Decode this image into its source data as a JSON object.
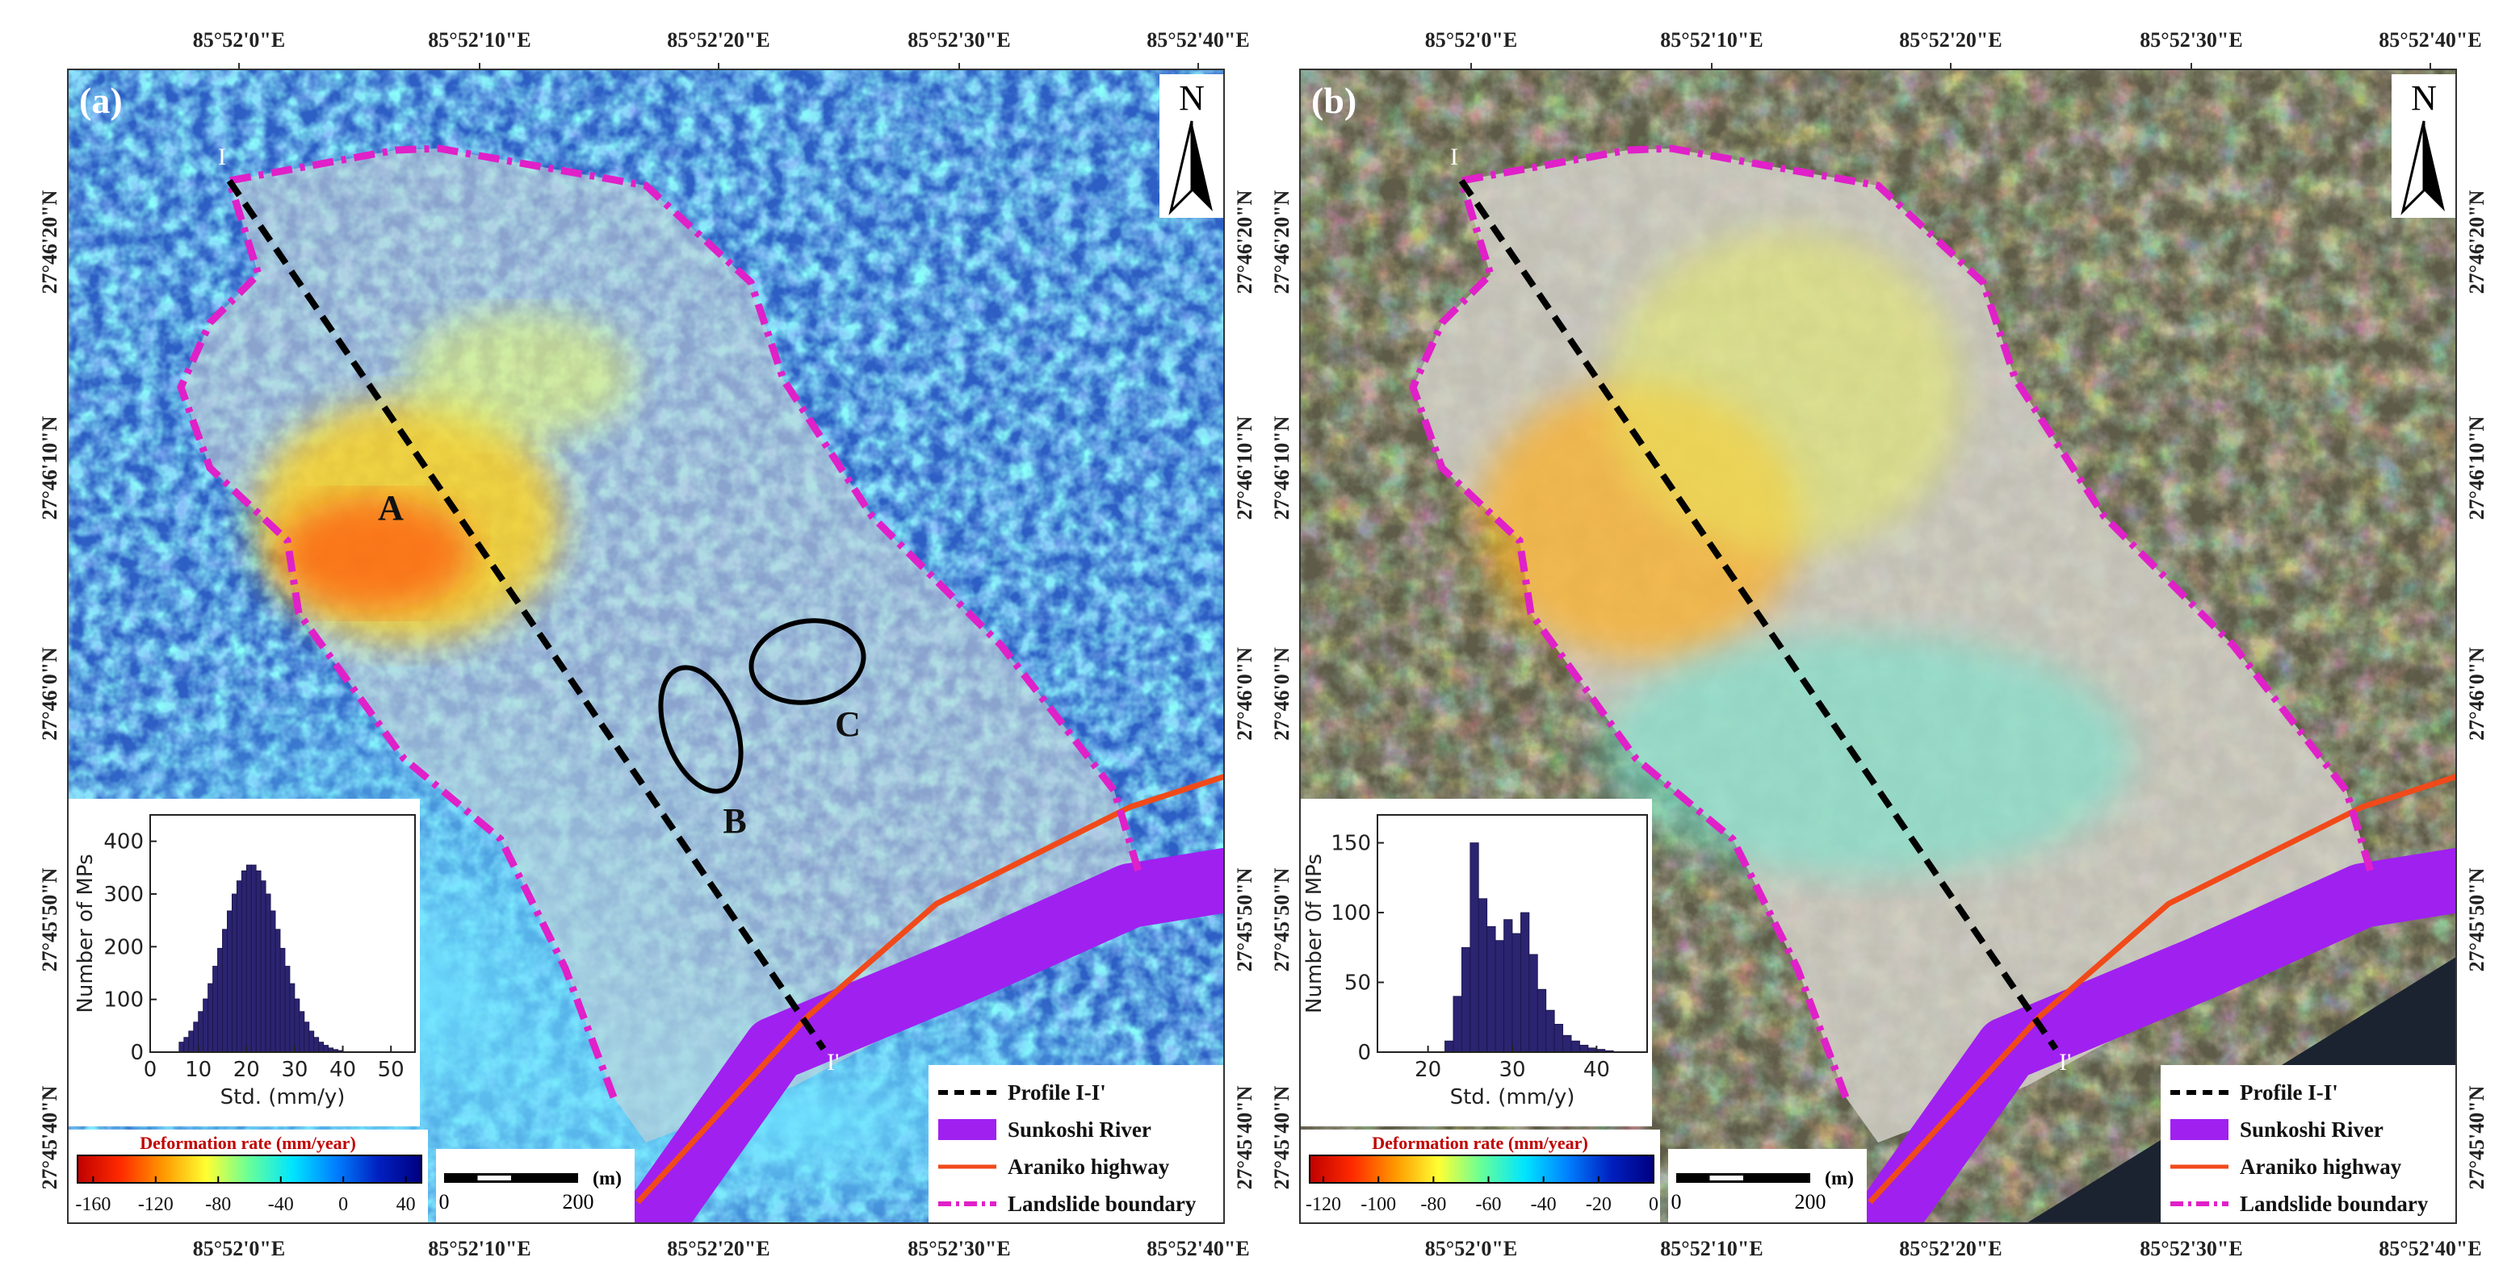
{
  "panels": [
    {
      "label": "(a)",
      "north": "N",
      "lon_labels": [
        "85°52'0\"E",
        "85°52'10\"E",
        "85°52'20\"E",
        "85°52'30\"E",
        "85°52'40\"E"
      ],
      "lat_labels": [
        "27°46'20\"N",
        "27°46'10\"N",
        "27°46'0\"N",
        "27°45'50\"N",
        "27°45'40\"N"
      ],
      "profile": {
        "start": "I",
        "end": "I'"
      },
      "annotations": [
        "A",
        "B",
        "C"
      ],
      "histogram": {
        "type": "histogram",
        "xlabel": "Std. (mm/y)",
        "ylabel": "Number of MPs",
        "color": "#2b2470",
        "bins": [
          6,
          7,
          8,
          9,
          10,
          11,
          12,
          13,
          14,
          15,
          16,
          17,
          18,
          19,
          20,
          21,
          22,
          23,
          24,
          25,
          26,
          27,
          28,
          29,
          30,
          31,
          32,
          33,
          34,
          35,
          36,
          37,
          38,
          39,
          40
        ],
        "values": [
          19,
          28,
          40,
          57,
          77,
          101,
          130,
          163,
          197,
          233,
          268,
          300,
          325,
          344,
          355,
          355,
          344,
          325,
          300,
          268,
          233,
          197,
          163,
          130,
          101,
          77,
          57,
          40,
          28,
          19,
          13,
          8,
          5,
          3
        ],
        "xlim": [
          0,
          55
        ],
        "ylim": [
          0,
          450
        ],
        "xticks": [
          0,
          10,
          20,
          30,
          40,
          50
        ],
        "yticks": [
          0,
          100,
          200,
          300,
          400
        ]
      },
      "colorbar": {
        "title": "Deformation rate (mm/year)",
        "clim": [
          -170,
          50
        ],
        "ticks": [
          -160,
          -120,
          -80,
          -40,
          0,
          40
        ],
        "colors": [
          "#c00000",
          "#ff2a00",
          "#ff9900",
          "#ffff33",
          "#66ff99",
          "#00e5ff",
          "#0080ff",
          "#0020c0",
          "#000080"
        ]
      },
      "scalebar": {
        "unit": "(m)",
        "ticks": [
          0,
          200
        ]
      },
      "legend": [
        {
          "label": "Profile I-I'",
          "color": "#000000",
          "style": "dashed"
        },
        {
          "label": "Sunkoshi River",
          "color": "#a020f0",
          "style": "band"
        },
        {
          "label": "Araniko highway",
          "color": "#f04a1a",
          "style": "line"
        },
        {
          "label": "Landslide boundary",
          "color": "#e020c8",
          "style": "dashdot"
        }
      ]
    },
    {
      "label": "(b)",
      "north": "N",
      "lon_labels": [
        "85°52'0\"E",
        "85°52'10\"E",
        "85°52'20\"E",
        "85°52'30\"E",
        "85°52'40\"E"
      ],
      "lat_labels": [
        "27°46'20\"N",
        "27°46'10\"N",
        "27°46'0\"N",
        "27°45'50\"N",
        "27°45'40\"N"
      ],
      "profile": {
        "start": "I",
        "end": "I'"
      },
      "annotations": [],
      "histogram": {
        "type": "histogram",
        "xlabel": "Std. (mm/y)",
        "ylabel": "Number 0f MPs",
        "color": "#2b2470",
        "bins": [
          22,
          23,
          24,
          25,
          26,
          27,
          28,
          29,
          30,
          31,
          32,
          33,
          34,
          35,
          36,
          37,
          38,
          39,
          40,
          41,
          42
        ],
        "values": [
          8,
          40,
          75,
          150,
          110,
          90,
          80,
          95,
          85,
          100,
          70,
          45,
          30,
          20,
          12,
          8,
          5,
          3,
          2,
          1
        ],
        "xlim": [
          14,
          46
        ],
        "ylim": [
          0,
          170
        ],
        "xticks": [
          20,
          30,
          40
        ],
        "yticks": [
          0,
          50,
          100,
          150
        ]
      },
      "colorbar": {
        "title": "Deformation rate (mm/year)",
        "clim": [
          -125,
          0
        ],
        "ticks": [
          -120,
          -100,
          -80,
          -60,
          -40,
          -20,
          0
        ],
        "colors": [
          "#c00000",
          "#ff2a00",
          "#ff9900",
          "#ffff33",
          "#66ff99",
          "#00e5ff",
          "#0080ff",
          "#0020c0",
          "#000080"
        ]
      },
      "scalebar": {
        "unit": "(m)",
        "ticks": [
          0,
          200
        ]
      },
      "legend": [
        {
          "label": "Profile I-I'",
          "color": "#000000",
          "style": "dashed"
        },
        {
          "label": "Sunkoshi River",
          "color": "#a020f0",
          "style": "band"
        },
        {
          "label": "Araniko highway",
          "color": "#f04a1a",
          "style": "line"
        },
        {
          "label": "Landslide boundary",
          "color": "#e020c8",
          "style": "dashdot"
        }
      ]
    }
  ]
}
